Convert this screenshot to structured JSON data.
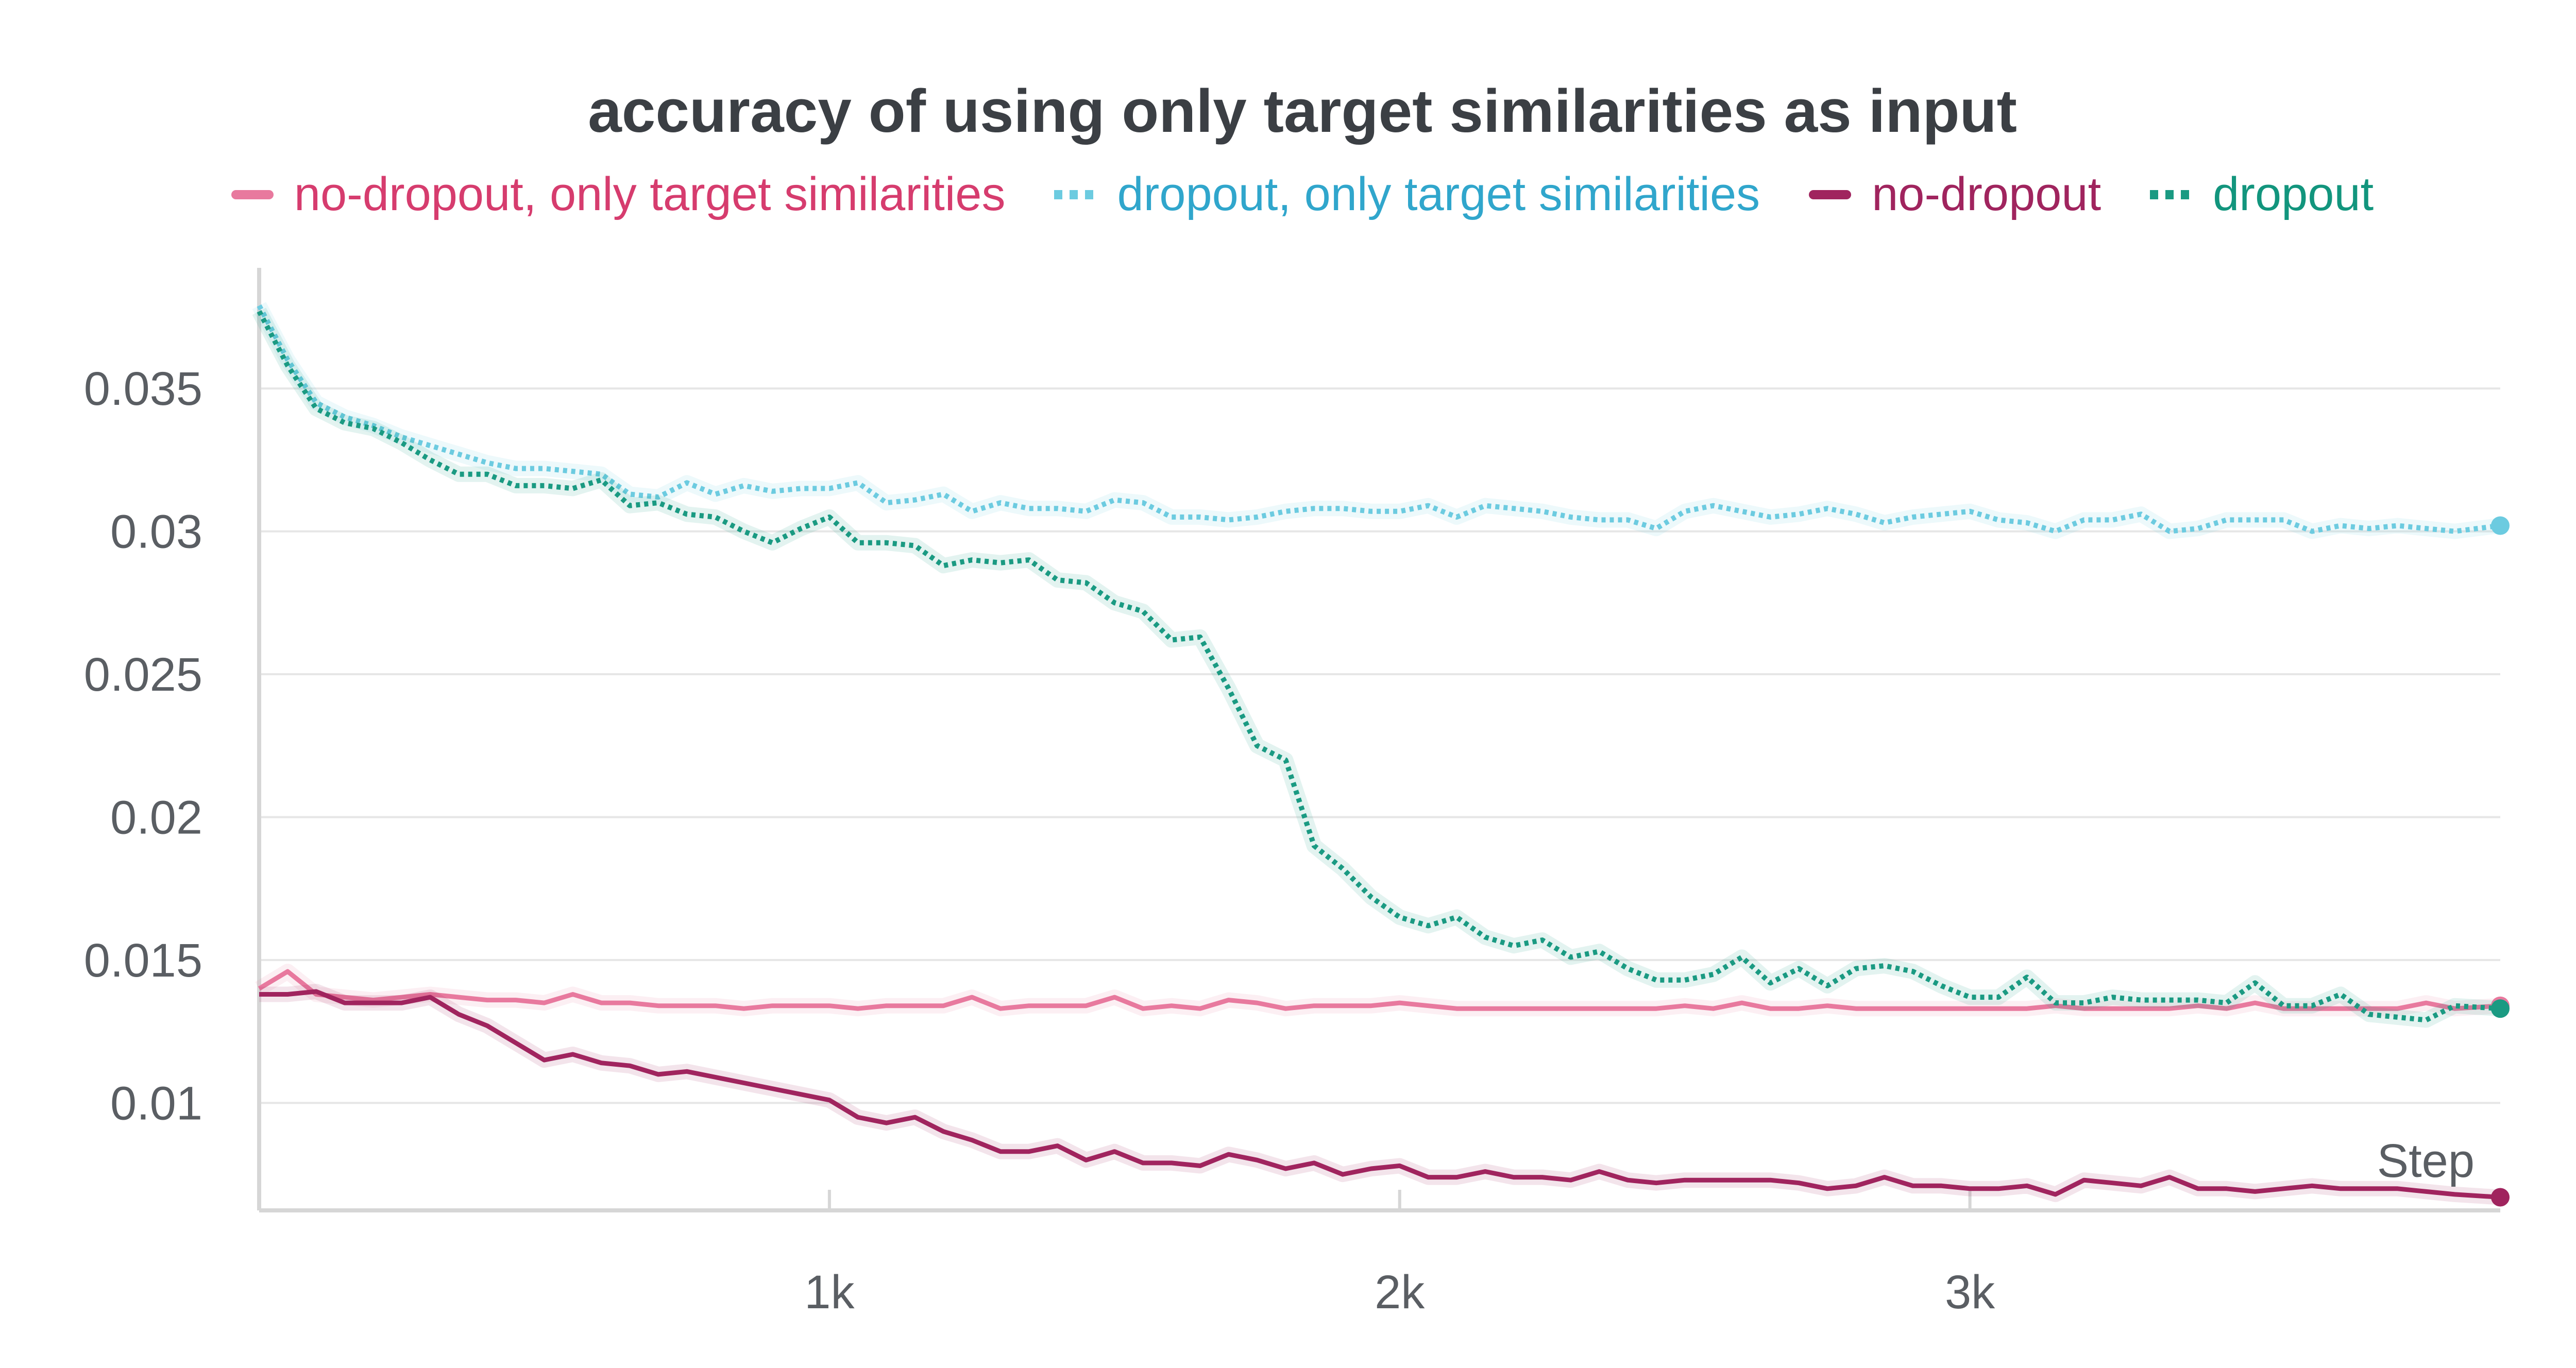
{
  "chart_data": {
    "type": "line",
    "title": "accuracy of using only target similarities as input",
    "xlabel": "Step",
    "ylabel": "",
    "xlim": [
      0,
      3930
    ],
    "ylim": [
      0.0066,
      0.0385
    ],
    "xticks": [
      1000,
      2000,
      3000
    ],
    "xtick_labels": [
      "1k",
      "2k",
      "3k"
    ],
    "yticks": [
      0.01,
      0.015,
      0.02,
      0.025,
      0.03,
      0.035
    ],
    "ytick_labels": [
      "0.01",
      "0.015",
      "0.02",
      "0.025",
      "0.03",
      "0.035"
    ],
    "grid": true,
    "legend_position": "top",
    "series": [
      {
        "name": "no-dropout, only target similarities",
        "color": "#e8799e",
        "text_color": "#d63c6e",
        "style": "solid",
        "x": [
          0,
          50,
          100,
          150,
          200,
          250,
          300,
          350,
          400,
          450,
          500,
          550,
          600,
          650,
          700,
          750,
          800,
          850,
          900,
          950,
          1000,
          1050,
          1100,
          1150,
          1200,
          1250,
          1300,
          1350,
          1400,
          1450,
          1500,
          1550,
          1600,
          1650,
          1700,
          1750,
          1800,
          1850,
          1900,
          1950,
          2000,
          2050,
          2100,
          2150,
          2200,
          2250,
          2300,
          2350,
          2400,
          2450,
          2500,
          2550,
          2600,
          2650,
          2700,
          2750,
          2800,
          2850,
          2900,
          2950,
          3000,
          3050,
          3100,
          3150,
          3200,
          3250,
          3300,
          3350,
          3400,
          3450,
          3500,
          3550,
          3600,
          3650,
          3700,
          3750,
          3800,
          3850,
          3930
        ],
        "y": [
          0.014,
          0.0146,
          0.0138,
          0.0137,
          0.0136,
          0.0137,
          0.0138,
          0.0137,
          0.0136,
          0.0136,
          0.0135,
          0.0138,
          0.0135,
          0.0135,
          0.0134,
          0.0134,
          0.0134,
          0.0133,
          0.0134,
          0.0134,
          0.0134,
          0.0133,
          0.0134,
          0.0134,
          0.0134,
          0.0137,
          0.0133,
          0.0134,
          0.0134,
          0.0134,
          0.0137,
          0.0133,
          0.0134,
          0.0133,
          0.0136,
          0.0135,
          0.0133,
          0.0134,
          0.0134,
          0.0134,
          0.0135,
          0.0134,
          0.0133,
          0.0133,
          0.0133,
          0.0133,
          0.0133,
          0.0133,
          0.0133,
          0.0133,
          0.0134,
          0.0133,
          0.0135,
          0.0133,
          0.0133,
          0.0134,
          0.0133,
          0.0133,
          0.0133,
          0.0133,
          0.0133,
          0.0133,
          0.0133,
          0.0134,
          0.0133,
          0.0133,
          0.0133,
          0.0133,
          0.0134,
          0.0133,
          0.0135,
          0.0133,
          0.0133,
          0.0133,
          0.0133,
          0.0133,
          0.0135,
          0.0133,
          0.0134
        ]
      },
      {
        "name": "dropout, only target similarities",
        "color": "#6ccbe0",
        "text_color": "#30a6cc",
        "style": "dotted",
        "x": [
          0,
          50,
          100,
          150,
          200,
          250,
          300,
          350,
          400,
          450,
          500,
          550,
          600,
          650,
          700,
          750,
          800,
          850,
          900,
          950,
          1000,
          1050,
          1100,
          1150,
          1200,
          1250,
          1300,
          1350,
          1400,
          1450,
          1500,
          1550,
          1600,
          1650,
          1700,
          1750,
          1800,
          1850,
          1900,
          1950,
          2000,
          2050,
          2100,
          2150,
          2200,
          2250,
          2300,
          2350,
          2400,
          2450,
          2500,
          2550,
          2600,
          2650,
          2700,
          2750,
          2800,
          2850,
          2900,
          2950,
          3000,
          3050,
          3100,
          3150,
          3200,
          3250,
          3300,
          3350,
          3400,
          3450,
          3500,
          3550,
          3600,
          3650,
          3700,
          3750,
          3800,
          3850,
          3930
        ],
        "y": [
          0.0379,
          0.036,
          0.0345,
          0.034,
          0.0337,
          0.0333,
          0.033,
          0.0327,
          0.0324,
          0.0322,
          0.0322,
          0.0321,
          0.032,
          0.0313,
          0.0312,
          0.0317,
          0.0313,
          0.0316,
          0.0314,
          0.0315,
          0.0315,
          0.0317,
          0.031,
          0.0311,
          0.0313,
          0.0307,
          0.031,
          0.0308,
          0.0308,
          0.0307,
          0.0311,
          0.031,
          0.0305,
          0.0305,
          0.0304,
          0.0305,
          0.0307,
          0.0308,
          0.0308,
          0.0307,
          0.0307,
          0.0309,
          0.0305,
          0.0309,
          0.0308,
          0.0307,
          0.0305,
          0.0304,
          0.0304,
          0.0301,
          0.0307,
          0.0309,
          0.0307,
          0.0305,
          0.0306,
          0.0308,
          0.0306,
          0.0303,
          0.0305,
          0.0306,
          0.0307,
          0.0304,
          0.0303,
          0.03,
          0.0304,
          0.0304,
          0.0306,
          0.03,
          0.0301,
          0.0304,
          0.0304,
          0.0304,
          0.03,
          0.0302,
          0.0301,
          0.0302,
          0.0301,
          0.03,
          0.0302
        ]
      },
      {
        "name": "no-dropout",
        "color": "#a0245e",
        "text_color": "#a0245e",
        "style": "solid",
        "x": [
          0,
          50,
          100,
          150,
          200,
          250,
          300,
          350,
          400,
          450,
          500,
          550,
          600,
          650,
          700,
          750,
          800,
          850,
          900,
          950,
          1000,
          1050,
          1100,
          1150,
          1200,
          1250,
          1300,
          1350,
          1400,
          1450,
          1500,
          1550,
          1600,
          1650,
          1700,
          1750,
          1800,
          1850,
          1900,
          1950,
          2000,
          2050,
          2100,
          2150,
          2200,
          2250,
          2300,
          2350,
          2400,
          2450,
          2500,
          2550,
          2600,
          2650,
          2700,
          2750,
          2800,
          2850,
          2900,
          2950,
          3000,
          3050,
          3100,
          3150,
          3200,
          3250,
          3300,
          3350,
          3400,
          3450,
          3500,
          3550,
          3600,
          3650,
          3700,
          3750,
          3800,
          3850,
          3930
        ],
        "y": [
          0.0138,
          0.0138,
          0.0139,
          0.0135,
          0.0135,
          0.0135,
          0.0137,
          0.0131,
          0.0127,
          0.0121,
          0.0115,
          0.0117,
          0.0114,
          0.0113,
          0.011,
          0.0111,
          0.0109,
          0.0107,
          0.0105,
          0.0103,
          0.0101,
          0.0095,
          0.0093,
          0.0095,
          0.009,
          0.0087,
          0.0083,
          0.0083,
          0.0085,
          0.008,
          0.0083,
          0.0079,
          0.0079,
          0.0078,
          0.0082,
          0.008,
          0.0077,
          0.0079,
          0.0075,
          0.0077,
          0.0078,
          0.0074,
          0.0074,
          0.0076,
          0.0074,
          0.0074,
          0.0073,
          0.0076,
          0.0073,
          0.0072,
          0.0073,
          0.0073,
          0.0073,
          0.0073,
          0.0072,
          0.007,
          0.0071,
          0.0074,
          0.0071,
          0.0071,
          0.007,
          0.007,
          0.0071,
          0.0068,
          0.0073,
          0.0072,
          0.0071,
          0.0074,
          0.007,
          0.007,
          0.0069,
          0.007,
          0.0071,
          0.007,
          0.007,
          0.007,
          0.0069,
          0.0068,
          0.0067
        ]
      },
      {
        "name": "dropout",
        "color": "#1a9a82",
        "text_color": "#12957d",
        "style": "dotted",
        "x": [
          0,
          50,
          100,
          150,
          200,
          250,
          300,
          350,
          400,
          450,
          500,
          550,
          600,
          650,
          700,
          750,
          800,
          850,
          900,
          950,
          1000,
          1050,
          1100,
          1150,
          1200,
          1250,
          1300,
          1350,
          1400,
          1450,
          1500,
          1550,
          1600,
          1650,
          1700,
          1750,
          1800,
          1850,
          1900,
          1950,
          2000,
          2050,
          2100,
          2150,
          2200,
          2250,
          2300,
          2350,
          2400,
          2450,
          2500,
          2550,
          2600,
          2650,
          2700,
          2750,
          2800,
          2850,
          2900,
          2950,
          3000,
          3050,
          3100,
          3150,
          3200,
          3250,
          3300,
          3350,
          3400,
          3450,
          3500,
          3550,
          3600,
          3650,
          3700,
          3750,
          3800,
          3850,
          3930
        ],
        "y": [
          0.0377,
          0.0358,
          0.0343,
          0.0338,
          0.0336,
          0.0331,
          0.0325,
          0.032,
          0.032,
          0.0316,
          0.0316,
          0.0315,
          0.0318,
          0.0309,
          0.031,
          0.0306,
          0.0305,
          0.03,
          0.0296,
          0.0301,
          0.0305,
          0.0296,
          0.0296,
          0.0295,
          0.0288,
          0.029,
          0.0289,
          0.029,
          0.0283,
          0.0282,
          0.0275,
          0.0272,
          0.0262,
          0.0263,
          0.0245,
          0.0225,
          0.022,
          0.019,
          0.0182,
          0.0172,
          0.0165,
          0.0162,
          0.0165,
          0.0158,
          0.0155,
          0.0157,
          0.0151,
          0.0153,
          0.0147,
          0.0143,
          0.0143,
          0.0145,
          0.0151,
          0.0142,
          0.0147,
          0.0141,
          0.0147,
          0.0148,
          0.0146,
          0.0141,
          0.0137,
          0.0137,
          0.0144,
          0.0135,
          0.0135,
          0.0137,
          0.0136,
          0.0136,
          0.0136,
          0.0135,
          0.0142,
          0.0134,
          0.0134,
          0.0138,
          0.0131,
          0.013,
          0.0129,
          0.0134,
          0.0133
        ]
      }
    ]
  }
}
